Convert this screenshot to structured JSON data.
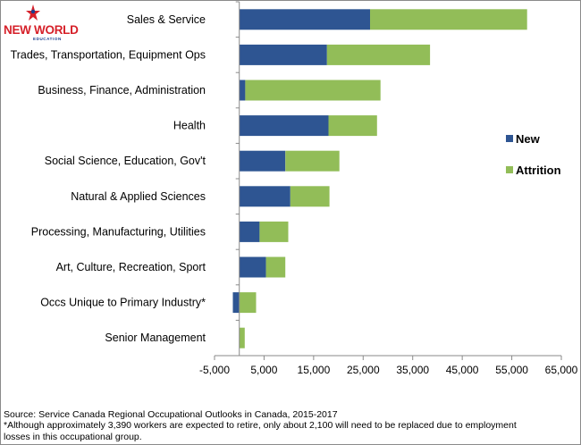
{
  "logo": {
    "text": "NEW WORLD",
    "subtext": "EDUCATION",
    "colors": {
      "primary": "#d6212a",
      "secondary": "#1a3f8f"
    }
  },
  "chart_data": {
    "type": "bar",
    "orientation": "horizontal",
    "stacked": true,
    "categories": [
      "Sales & Service",
      "Trades, Transportation, Equipment Ops",
      "Business, Finance, Administration",
      "Health",
      "Social Science, Education, Gov't",
      "Natural & Applied Sciences",
      "Processing, Manufacturing, Utilities",
      "Art, Culture, Recreation, Sport",
      "Occs Unique to Primary Industry*",
      "Senior Management"
    ],
    "series": [
      {
        "name": "New",
        "color": "#2e5592",
        "values": [
          26400,
          17700,
          1200,
          18000,
          9300,
          10300,
          4100,
          5400,
          -1300,
          0
        ]
      },
      {
        "name": "Attrition",
        "color": "#92bd58",
        "values": [
          31700,
          20800,
          27300,
          9800,
          10900,
          7900,
          5800,
          3900,
          3400,
          1100
        ]
      }
    ],
    "xlim": [
      -5000,
      65000
    ],
    "xticks": [
      -5000,
      5000,
      15000,
      25000,
      35000,
      45000,
      55000,
      65000
    ],
    "xtick_labels": [
      "-5,000",
      "5,000",
      "15,000",
      "25,000",
      "35,000",
      "45,000",
      "55,000",
      "65,000"
    ],
    "grid": false,
    "legend_position": "right"
  },
  "source": {
    "line1": "Source: Service Canada Regional Occupational Outlooks in Canada, 2015-2017",
    "line2": "*Although approximately 3,390 workers are expected to retire, only about 2,100 will need to be replaced due to employment",
    "line3": "losses in this occupational group."
  }
}
